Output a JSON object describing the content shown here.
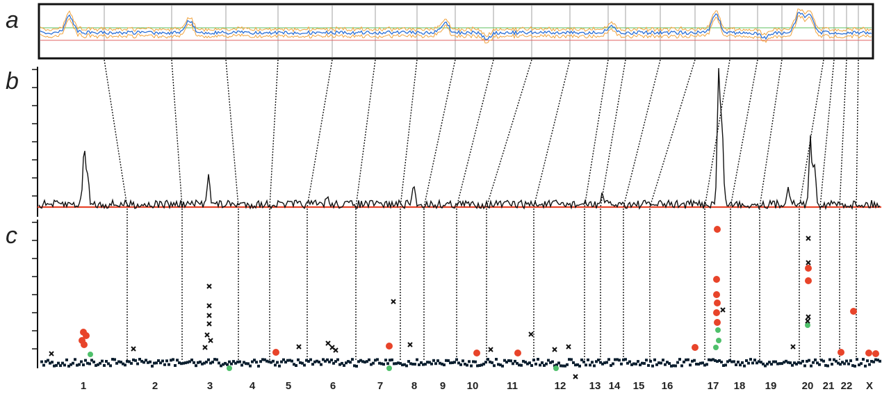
{
  "figure": {
    "panel_letters": [
      "a",
      "b",
      "c"
    ],
    "chromosomes": [
      "1",
      "2",
      "3",
      "4",
      "5",
      "6",
      "7",
      "8",
      "9",
      "10",
      "11",
      "12",
      "13",
      "14",
      "15",
      "16",
      "17",
      "18",
      "19",
      "20",
      "21",
      "22",
      "X"
    ]
  },
  "colors": {
    "trace": "#111111",
    "baseline": "#e8442a",
    "panel_a_blue": "#2a6fd6",
    "panel_a_orange": "#f0a23c",
    "panel_a_green": "#5cbf5c",
    "panel_a_red": "#e06060",
    "marker_red": "#e8442a",
    "marker_green": "#4fc06b",
    "marker_dark": "#0d2030"
  }
}
